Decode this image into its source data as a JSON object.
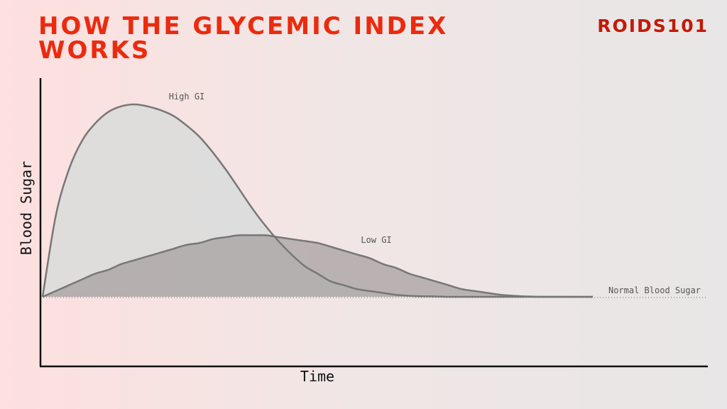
{
  "header": {
    "title": "HOW THE GLYCEMIC INDEX WORKS",
    "brand": "ROIDS101"
  },
  "colors": {
    "title": "#ec2a0e",
    "brand": "#c21a08",
    "high_gi_fill": "#dcdcdc",
    "low_gi_fill": "#a59e9e",
    "curve_stroke": "#777777",
    "axis": "#111111"
  },
  "chart_data": {
    "type": "area",
    "xlabel": "Time",
    "ylabel": "Blood Sugar",
    "baseline_label": "Normal Blood Sugar",
    "x_ticks": false,
    "y_ticks": false,
    "grid": false,
    "series": [
      {
        "name": "High GI",
        "x": [
          0,
          2,
          4,
          6,
          8,
          10,
          12,
          14,
          16,
          18,
          20,
          22,
          24,
          26,
          28,
          30,
          32,
          34,
          36,
          38,
          40,
          42,
          44,
          46,
          48,
          50,
          52,
          54,
          56,
          58,
          60,
          62,
          64,
          66,
          68,
          70,
          72,
          74,
          76,
          78,
          80,
          82,
          84
        ],
        "y": [
          0,
          42,
          66,
          81,
          90,
          96,
          99,
          100,
          99,
          97,
          94,
          89,
          83,
          75,
          66,
          56,
          46,
          37,
          29,
          22,
          16,
          12,
          8,
          6,
          4,
          3,
          2,
          1,
          0.5,
          0.3,
          0.2,
          0,
          0,
          0,
          0,
          0,
          0,
          0,
          0,
          0,
          0,
          0,
          0
        ]
      },
      {
        "name": "Low GI",
        "x": [
          0,
          2,
          4,
          6,
          8,
          10,
          12,
          14,
          16,
          18,
          20,
          22,
          24,
          26,
          28,
          30,
          32,
          34,
          36,
          38,
          40,
          42,
          44,
          46,
          48,
          50,
          52,
          54,
          56,
          58,
          60,
          62,
          64,
          66,
          68,
          70,
          72,
          74,
          76,
          78,
          80,
          82,
          84
        ],
        "y": [
          0,
          3,
          6,
          9,
          12,
          14,
          17,
          19,
          21,
          23,
          25,
          27,
          28,
          30,
          31,
          32,
          32,
          32,
          31,
          30,
          29,
          28,
          26,
          24,
          22,
          20,
          17,
          15,
          12,
          10,
          8,
          6,
          4,
          3,
          2,
          1,
          0.5,
          0.2,
          0,
          0,
          0,
          0,
          0
        ]
      }
    ]
  }
}
